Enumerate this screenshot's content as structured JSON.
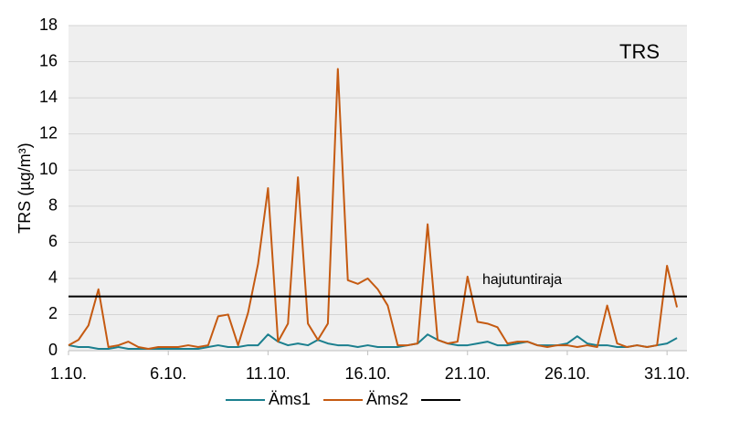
{
  "chart_data": {
    "type": "line",
    "y_label": "TRS (µg/m³)",
    "annotation": "TRS",
    "x": [
      1,
      1.5,
      2,
      2.5,
      3,
      3.5,
      4,
      4.5,
      5,
      5.5,
      6,
      6.5,
      7,
      7.5,
      8,
      8.5,
      9,
      9.5,
      10,
      10.5,
      11,
      11.5,
      12,
      12.5,
      13,
      13.5,
      14,
      14.5,
      15,
      15.5,
      16,
      16.5,
      17,
      17.5,
      18,
      18.5,
      19,
      19.5,
      20,
      20.5,
      21,
      21.5,
      22,
      22.5,
      23,
      23.5,
      24,
      24.5,
      25,
      25.5,
      26,
      26.5,
      27,
      27.5,
      28,
      28.5,
      29,
      29.5,
      30,
      30.5,
      31,
      31.5
    ],
    "series": [
      {
        "name": "Äms1",
        "color": "#1b7f8e",
        "values": [
          0.3,
          0.2,
          0.2,
          0.1,
          0.1,
          0.2,
          0.1,
          0.1,
          0.1,
          0.1,
          0.1,
          0.1,
          0.1,
          0.1,
          0.2,
          0.3,
          0.2,
          0.2,
          0.3,
          0.3,
          0.9,
          0.5,
          0.3,
          0.4,
          0.3,
          0.6,
          0.4,
          0.3,
          0.3,
          0.2,
          0.3,
          0.2,
          0.2,
          0.2,
          0.3,
          0.4,
          0.9,
          0.6,
          0.4,
          0.3,
          0.3,
          0.4,
          0.5,
          0.3,
          0.3,
          0.4,
          0.5,
          0.3,
          0.3,
          0.3,
          0.4,
          0.8,
          0.4,
          0.3,
          0.3,
          0.2,
          0.2,
          0.3,
          0.2,
          0.3,
          0.4,
          0.7
        ]
      },
      {
        "name": "Äms2",
        "color": "#c55a11",
        "values": [
          0.3,
          0.6,
          1.4,
          3.4,
          0.2,
          0.3,
          0.5,
          0.2,
          0.1,
          0.2,
          0.2,
          0.2,
          0.3,
          0.2,
          0.3,
          1.9,
          2.0,
          0.3,
          2.1,
          4.8,
          9.0,
          0.5,
          1.5,
          9.6,
          1.5,
          0.6,
          1.5,
          15.6,
          3.9,
          3.7,
          4.0,
          3.4,
          2.5,
          0.3,
          0.3,
          0.4,
          7.0,
          0.6,
          0.4,
          0.5,
          4.1,
          1.6,
          1.5,
          1.3,
          0.4,
          0.5,
          0.5,
          0.3,
          0.2,
          0.3,
          0.3,
          0.2,
          0.3,
          0.2,
          2.5,
          0.4,
          0.2,
          0.3,
          0.2,
          0.3,
          4.7,
          2.4
        ]
      }
    ],
    "threshold": {
      "value": 3,
      "label": "hajutuntiraja",
      "color": "#000000"
    },
    "xlim": [
      1,
      32
    ],
    "xticks": [
      {
        "value": 1,
        "label": "1.10."
      },
      {
        "value": 6,
        "label": "6.10."
      },
      {
        "value": 11,
        "label": "11.10."
      },
      {
        "value": 16,
        "label": "16.10."
      },
      {
        "value": 21,
        "label": "21.10."
      },
      {
        "value": 26,
        "label": "26.10."
      },
      {
        "value": 31,
        "label": "31.10."
      }
    ],
    "ylim": [
      0,
      18
    ],
    "yticks": [
      0,
      2,
      4,
      6,
      8,
      10,
      12,
      14,
      16,
      18
    ],
    "grid": true,
    "legend": "bottom"
  }
}
